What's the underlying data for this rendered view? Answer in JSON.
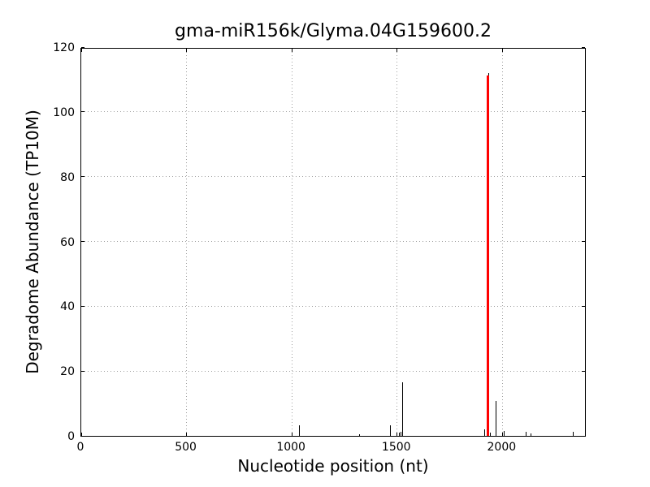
{
  "chart_data": {
    "type": "bar",
    "subtype": "degradome-t-plot-spikes",
    "title": "gma-miR156k/Glyma.04G159600.2",
    "xlabel": "Nucleotide position (nt)",
    "ylabel": "Degradome Abundance (TP10M)",
    "xlim": [
      0,
      2400
    ],
    "ylim": [
      0,
      120
    ],
    "xticks": [
      0,
      500,
      1000,
      1500,
      2000
    ],
    "yticks": [
      0,
      20,
      40,
      60,
      80,
      100,
      120
    ],
    "grid": true,
    "grid_style": "dotted",
    "legend": "none",
    "colors": {
      "background": "#ffffff",
      "axis": "#000000",
      "grid": "#a0a0a0",
      "default_spike": "#000000",
      "highlight_spike": "#ff0000"
    },
    "peaks": [
      {
        "x": 1037,
        "y": 3.3,
        "color": "#000000"
      },
      {
        "x": 1320,
        "y": 0.6,
        "color": "#000000"
      },
      {
        "x": 1470,
        "y": 3.3,
        "color": "#000000"
      },
      {
        "x": 1509,
        "y": 1.0,
        "color": "#000000"
      },
      {
        "x": 1520,
        "y": 1.2,
        "color": "#000000"
      },
      {
        "x": 1526,
        "y": 16.6,
        "color": "#000000"
      },
      {
        "x": 1915,
        "y": 2.0,
        "color": "#000000"
      },
      {
        "x": 1934,
        "y": 112.0,
        "color": "#000000"
      },
      {
        "x": 1933,
        "y": 111.3,
        "color": "#ff0000",
        "highlight": true
      },
      {
        "x": 1944,
        "y": 0.9,
        "color": "#000000"
      },
      {
        "x": 1971,
        "y": 10.8,
        "color": "#000000"
      },
      {
        "x": 2010,
        "y": 1.6,
        "color": "#000000"
      },
      {
        "x": 2113,
        "y": 1.3,
        "color": "#000000"
      },
      {
        "x": 2136,
        "y": 0.8,
        "color": "#000000"
      },
      {
        "x": 2336,
        "y": 1.2,
        "color": "#000000"
      }
    ]
  }
}
